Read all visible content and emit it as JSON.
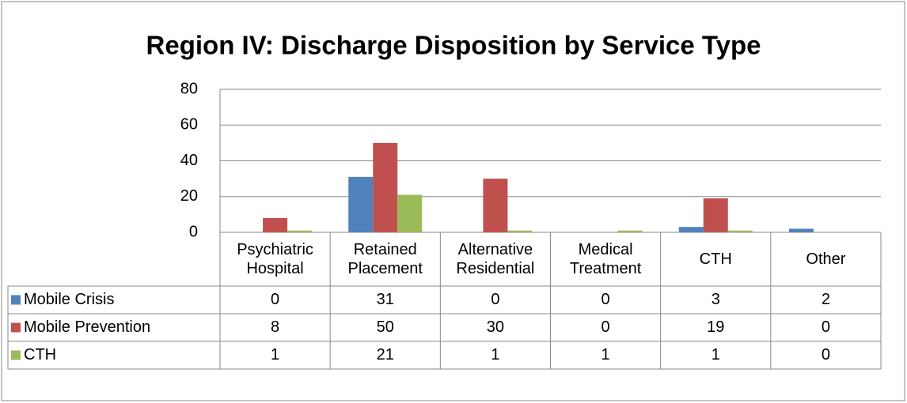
{
  "chart_data": {
    "type": "bar",
    "title": "Region IV: Discharge Disposition by Service Type",
    "categories": [
      "Psychiatric Hospital",
      "Retained Placement",
      "Alternative Residential",
      "Medical Treatment",
      "CTH",
      "Other"
    ],
    "series": [
      {
        "name": "Mobile Crisis",
        "color": "#4f81bd",
        "values": [
          0,
          31,
          0,
          0,
          3,
          2
        ]
      },
      {
        "name": "Mobile Prevention",
        "color": "#c0504d",
        "values": [
          8,
          50,
          30,
          0,
          19,
          0
        ]
      },
      {
        "name": "CTH",
        "color": "#9bbb59",
        "values": [
          1,
          21,
          1,
          1,
          1,
          0
        ]
      }
    ],
    "ylim": [
      0,
      80
    ],
    "yticks": [
      0,
      20,
      40,
      60,
      80
    ],
    "grid": true,
    "data_table": true
  }
}
